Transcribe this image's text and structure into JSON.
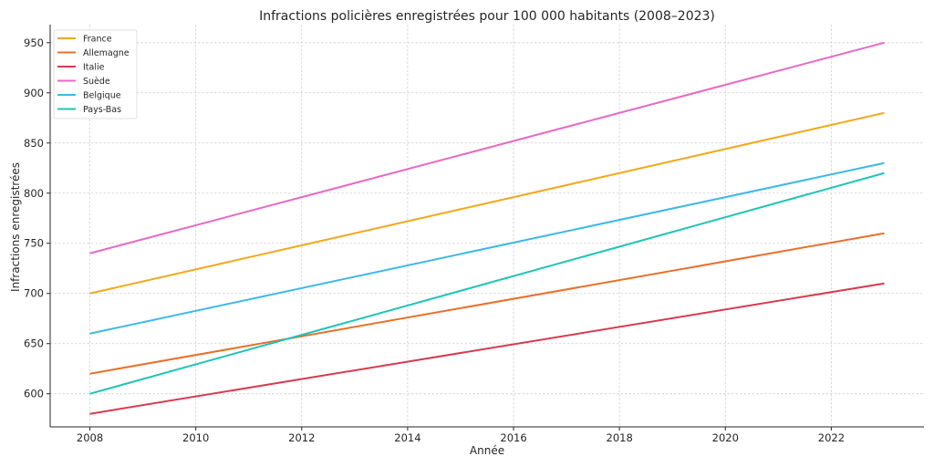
{
  "chart_data": {
    "type": "line",
    "title": "Infractions policières enregistrées pour 100 000 habitants (2008–2023)",
    "xlabel": "Année",
    "ylabel": "Infractions enregistrées",
    "x": [
      2008,
      2023
    ],
    "xlim": [
      2007.25,
      2023.75
    ],
    "ylim": [
      567,
      968
    ],
    "xticks": [
      2008,
      2010,
      2012,
      2014,
      2016,
      2018,
      2020,
      2022
    ],
    "yticks": [
      600,
      650,
      700,
      750,
      800,
      850,
      900,
      950
    ],
    "grid": true,
    "legend_position": "top-left",
    "series": [
      {
        "name": "France",
        "color": "#f2a91e",
        "values": [
          700,
          880
        ]
      },
      {
        "name": "Allemagne",
        "color": "#e8702a",
        "values": [
          620,
          760
        ]
      },
      {
        "name": "Italie",
        "color": "#d93a4f",
        "values": [
          580,
          710
        ]
      },
      {
        "name": "Suède",
        "color": "#e868c4",
        "values": [
          740,
          950
        ]
      },
      {
        "name": "Belgique",
        "color": "#3bb9e6",
        "values": [
          660,
          830
        ]
      },
      {
        "name": "Pays-Bas",
        "color": "#1dc4b4",
        "values": [
          600,
          820
        ]
      }
    ]
  }
}
